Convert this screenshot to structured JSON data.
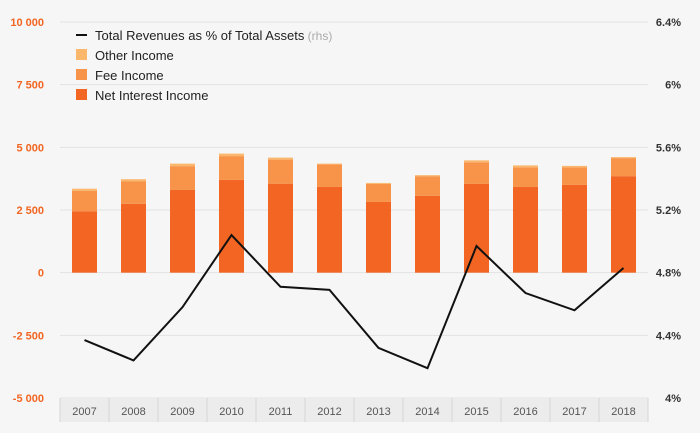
{
  "chart_data": {
    "type": "bar",
    "stacked": true,
    "categories": [
      "2007",
      "2008",
      "2009",
      "2010",
      "2011",
      "2012",
      "2013",
      "2014",
      "2015",
      "2016",
      "2017",
      "2018"
    ],
    "series": [
      {
        "name": "Net Interest Income",
        "type": "bar",
        "axis": "left",
        "color": "#f26522",
        "values": [
          2450,
          2750,
          3300,
          3700,
          3550,
          3420,
          2820,
          3070,
          3540,
          3420,
          3500,
          3850
        ]
      },
      {
        "name": "Fee Income",
        "type": "bar",
        "axis": "left",
        "color": "#f7944a",
        "values": [
          820,
          900,
          950,
          950,
          960,
          900,
          720,
          780,
          860,
          780,
          700,
          720
        ]
      },
      {
        "name": "Other Income",
        "type": "bar",
        "axis": "left",
        "color": "#fbb86c",
        "values": [
          80,
          80,
          100,
          100,
          80,
          30,
          40,
          40,
          80,
          80,
          60,
          40
        ]
      },
      {
        "name": "Total Revenues as % of Total Assets",
        "type": "line",
        "axis": "right",
        "color": "#111111",
        "values": [
          4.37,
          4.24,
          4.58,
          5.04,
          4.71,
          4.69,
          4.32,
          4.19,
          4.97,
          4.67,
          4.56,
          4.83
        ]
      }
    ],
    "left_axis": {
      "min": -5000,
      "max": 10000,
      "ticks": [
        10000,
        7500,
        5000,
        2500,
        0,
        -2500,
        -5000
      ],
      "tick_labels": [
        "10 000",
        "7 500",
        "5 000",
        "2 500",
        "0",
        "-2 500",
        "-5 000"
      ]
    },
    "right_axis": {
      "min": 4.0,
      "max": 6.4,
      "ticks": [
        6.4,
        6.0,
        5.6,
        5.2,
        4.8,
        4.4,
        4.0
      ],
      "tick_labels": [
        "6.4%",
        "6%",
        "5.6%",
        "5.2%",
        "4.8%",
        "4.4%",
        "4%"
      ]
    },
    "legend": {
      "placement": "top-left",
      "entries": [
        {
          "label": "Total Revenues as % of Total Assets",
          "suffix": "(rhs)",
          "marker": "line",
          "color": "#111111"
        },
        {
          "label": "Other Income",
          "marker": "box",
          "color": "#fbb86c"
        },
        {
          "label": "Fee Income",
          "marker": "box",
          "color": "#f7944a"
        },
        {
          "label": "Net Interest Income",
          "marker": "box",
          "color": "#f26522"
        }
      ]
    },
    "grid": true,
    "title": "",
    "xlabel": "",
    "ylabel": ""
  }
}
